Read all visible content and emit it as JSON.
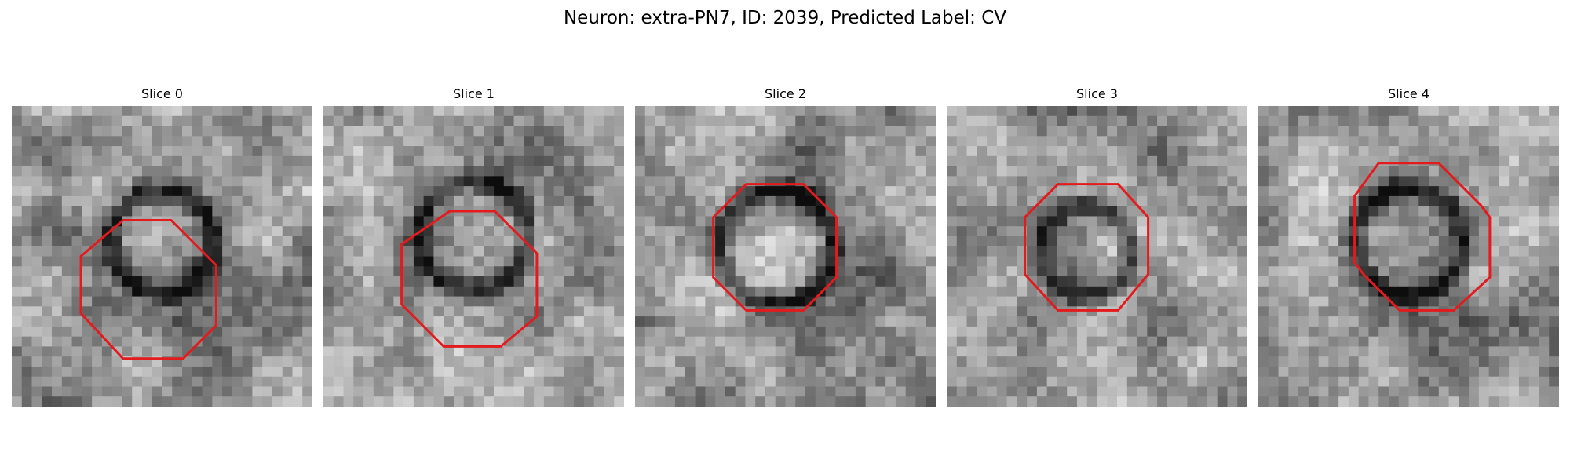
{
  "figure": {
    "title": "Neuron: extra-PN7, ID: 2039, Predicted Label: CV"
  },
  "panels": [
    {
      "title": "Slice 0"
    },
    {
      "title": "Slice 1"
    },
    {
      "title": "Slice 2"
    },
    {
      "title": "Slice 3"
    },
    {
      "title": "Slice 4"
    }
  ],
  "colors": {
    "contour": "#e41a1c",
    "background": "#ffffff"
  }
}
